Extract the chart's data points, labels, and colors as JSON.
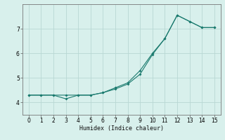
{
  "title": "",
  "xlabel": "Humidex (Indice chaleur)",
  "line1_x": [
    0,
    1,
    2,
    3,
    4,
    5,
    6,
    7,
    8,
    9,
    10,
    11,
    12,
    13,
    14,
    15
  ],
  "line1_y": [
    4.3,
    4.3,
    4.3,
    4.3,
    4.3,
    4.3,
    4.4,
    4.6,
    4.8,
    5.3,
    6.0,
    6.6,
    7.55,
    7.3,
    7.05,
    7.05
  ],
  "line2_x": [
    0,
    1,
    2,
    3,
    4,
    5,
    6,
    7,
    8,
    9,
    10,
    11,
    12,
    13,
    14,
    15
  ],
  "line2_y": [
    4.3,
    4.3,
    4.3,
    4.15,
    4.3,
    4.3,
    4.4,
    4.55,
    4.75,
    5.15,
    5.95,
    6.6,
    7.55,
    7.3,
    7.05,
    7.05
  ],
  "color": "#1a7a6e",
  "bg_color": "#d8f0ec",
  "grid_color": "#b8d8d4",
  "ylim": [
    3.5,
    8.0
  ],
  "xlim": [
    -0.5,
    15.5
  ],
  "yticks": [
    4,
    5,
    6,
    7
  ],
  "xticks": [
    0,
    1,
    2,
    3,
    4,
    5,
    6,
    7,
    8,
    9,
    10,
    11,
    12,
    13,
    14,
    15
  ]
}
